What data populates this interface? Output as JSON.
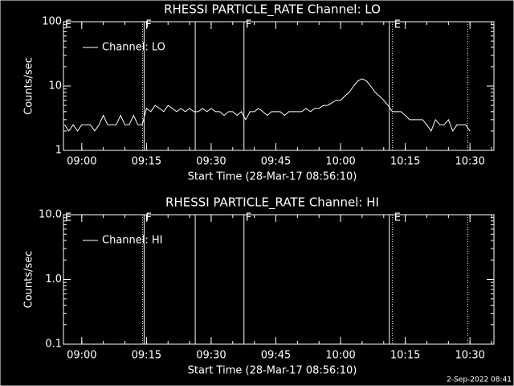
{
  "chart_data": [
    {
      "type": "line",
      "title": "RHESSI PARTICLE_RATE Channel: LO",
      "ylabel": "Counts/sec",
      "xlabel": "Start Time (28-Mar-17 08:56:10)",
      "xlim": [
        "08:55:45",
        "10:35:33"
      ],
      "xticks": [
        "09:00",
        "09:15",
        "09:30",
        "09:45",
        "10:00",
        "10:15",
        "10:30"
      ],
      "ylim": [
        1,
        100
      ],
      "yticks": [
        1,
        10,
        100
      ],
      "log_y": true,
      "x": [
        "08:56",
        "08:57",
        "08:58",
        "08:59",
        "09:00",
        "09:01",
        "09:02",
        "09:03",
        "09:04",
        "09:05",
        "09:06",
        "09:07",
        "09:08",
        "09:09",
        "09:10",
        "09:11",
        "09:12",
        "09:13",
        "09:14",
        "09:15",
        "09:16",
        "09:17",
        "09:18",
        "09:19",
        "09:20",
        "09:21",
        "09:22",
        "09:23",
        "09:24",
        "09:25",
        "09:26",
        "09:27",
        "09:28",
        "09:29",
        "09:30",
        "09:31",
        "09:32",
        "09:33",
        "09:34",
        "09:35",
        "09:36",
        "09:37",
        "09:38",
        "09:39",
        "09:40",
        "09:41",
        "09:42",
        "09:43",
        "09:44",
        "09:45",
        "09:46",
        "09:47",
        "09:48",
        "09:49",
        "09:50",
        "09:51",
        "09:52",
        "09:53",
        "09:54",
        "09:55",
        "09:56",
        "09:57",
        "09:58",
        "09:59",
        "10:00",
        "10:01",
        "10:02",
        "10:03",
        "10:04",
        "10:05",
        "10:06",
        "10:07",
        "10:08",
        "10:09",
        "10:10",
        "10:11",
        "10:12",
        "10:13",
        "10:14",
        "10:15",
        "10:16",
        "10:17",
        "10:18",
        "10:19",
        "10:20",
        "10:21",
        "10:22",
        "10:23",
        "10:24",
        "10:25",
        "10:26",
        "10:27",
        "10:28",
        "10:29",
        "10:30"
      ],
      "series": [
        {
          "name": "Channel: LO",
          "color": "#ffffff",
          "values": [
            2.5,
            2,
            2.5,
            2,
            2.5,
            2.5,
            2.5,
            2,
            2.5,
            3.5,
            2.5,
            2.5,
            2.5,
            3.5,
            2.5,
            2.5,
            3.5,
            2.5,
            2.5,
            4.5,
            4,
            5,
            4.5,
            4,
            5,
            4.5,
            4,
            4.5,
            4,
            4.5,
            4,
            4,
            4.5,
            4,
            4.5,
            4,
            4,
            3.5,
            4,
            4,
            3.5,
            4,
            3,
            4,
            4,
            4.5,
            4,
            3.5,
            4,
            4,
            4,
            3.5,
            4,
            4,
            4,
            4,
            4.5,
            4,
            4.5,
            4.5,
            5,
            5,
            5.5,
            6,
            6,
            7,
            8,
            10,
            12,
            13,
            12,
            10,
            8,
            7,
            6,
            5,
            4,
            4,
            4,
            3.5,
            3,
            3,
            3,
            3,
            2.5,
            2,
            3,
            2.5,
            2.5,
            3,
            2,
            2.5,
            2.5,
            2.5,
            2
          ]
        }
      ],
      "annotations": [
        {
          "x": "08:55:45",
          "label": "E"
        },
        {
          "x": "09:14:04",
          "style": "dotted"
        },
        {
          "x": "09:14:27",
          "style": "solid",
          "label": "F"
        },
        {
          "x": "09:26:18",
          "style": "solid"
        },
        {
          "x": "09:37:36",
          "style": "solid",
          "label": "F"
        },
        {
          "x": "10:11:18",
          "style": "solid"
        },
        {
          "x": "10:12:02",
          "style": "dotted",
          "label": "E"
        },
        {
          "x": "10:29:27",
          "style": "dotted"
        }
      ]
    },
    {
      "type": "line",
      "title": "RHESSI PARTICLE_RATE Channel: HI",
      "ylabel": "Counts/sec",
      "xlabel": "Start Time (28-Mar-17 08:56:10)",
      "xlim": [
        "08:55:45",
        "10:35:33"
      ],
      "xticks": [
        "09:00",
        "09:15",
        "09:30",
        "09:45",
        "10:00",
        "10:15",
        "10:30"
      ],
      "ylim": [
        0.1,
        10
      ],
      "yticks": [
        0.1,
        {
          "value": 1,
          "label": "1.0"
        },
        {
          "value": 10,
          "label": "10.0"
        }
      ],
      "log_y": true,
      "x": [],
      "series": [
        {
          "name": "Channel: HI",
          "color": "#ffffff",
          "values": []
        }
      ],
      "annotations": [
        {
          "x": "08:55:45",
          "label": "E"
        },
        {
          "x": "09:14:04",
          "style": "dotted"
        },
        {
          "x": "09:14:27",
          "style": "solid",
          "label": "F"
        },
        {
          "x": "09:26:18",
          "style": "solid"
        },
        {
          "x": "09:37:36",
          "style": "solid",
          "label": "F"
        },
        {
          "x": "10:11:18",
          "style": "solid"
        },
        {
          "x": "10:12:02",
          "style": "dotted",
          "label": "E"
        },
        {
          "x": "10:29:27",
          "style": "dotted"
        }
      ]
    }
  ],
  "footer": "2-Sep-2022 08:41"
}
